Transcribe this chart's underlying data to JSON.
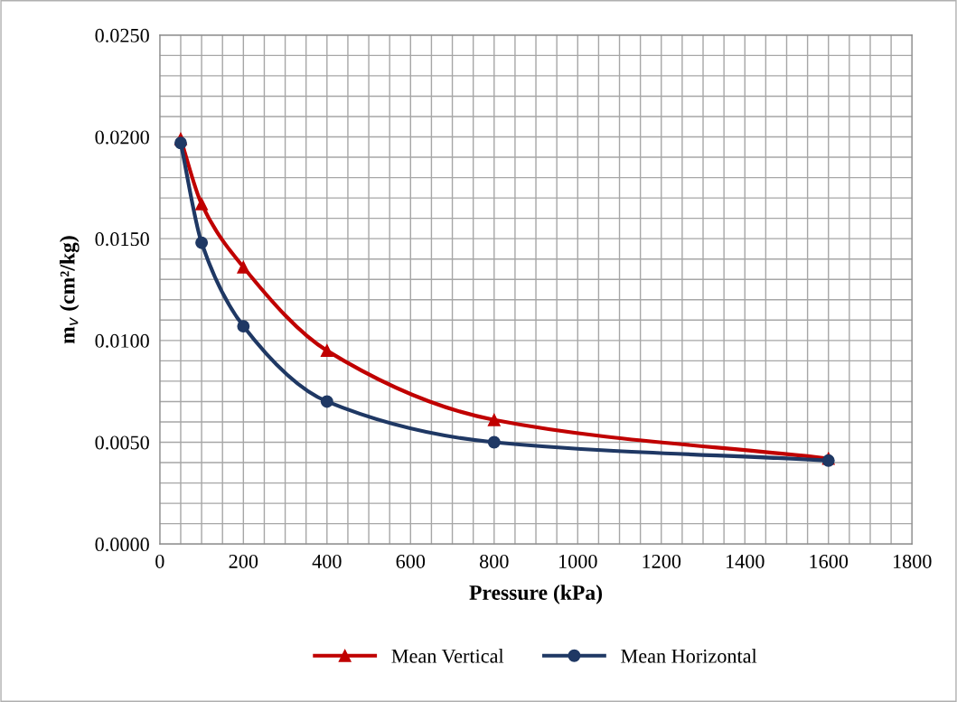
{
  "chart_data": {
    "type": "line",
    "xlabel": "Pressure (kPa)",
    "ylabel": "m$_{v}$ (cm²/kg)",
    "xlim": [
      0,
      1800
    ],
    "ylim": [
      0,
      0.025
    ],
    "xticks": [
      0,
      {
        "value": 50,
        "label": null
      },
      {
        "value": 100,
        "label": null
      },
      {
        "value": 150,
        "label": null
      },
      200,
      {
        "value": 250,
        "label": null
      },
      {
        "value": 300,
        "label": null
      },
      {
        "value": 350,
        "label": null
      },
      400,
      {
        "value": 450,
        "label": null
      },
      {
        "value": 500,
        "label": null
      },
      {
        "value": 550,
        "label": null
      },
      600,
      {
        "value": 650,
        "label": null
      },
      {
        "value": 700,
        "label": null
      },
      {
        "value": 750,
        "label": null
      },
      800,
      {
        "value": 850,
        "label": null
      },
      {
        "value": 900,
        "label": null
      },
      {
        "value": 950,
        "label": null
      },
      1000,
      {
        "value": 1050,
        "label": null
      },
      {
        "value": 1100,
        "label": null
      },
      {
        "value": 1150,
        "label": null
      },
      1200,
      {
        "value": 1250,
        "label": null
      },
      {
        "value": 1300,
        "label": null
      },
      {
        "value": 1350,
        "label": null
      },
      1400,
      {
        "value": 1450,
        "label": null
      },
      {
        "value": 1500,
        "label": null
      },
      {
        "value": 1550,
        "label": null
      },
      1600,
      {
        "value": 1650,
        "label": null
      },
      {
        "value": 1700,
        "label": null
      },
      {
        "value": 1750,
        "label": null
      },
      1800
    ],
    "yticks": [
      {
        "value": 0,
        "label": "0.0000"
      },
      {
        "value": 0.001,
        "label": null
      },
      {
        "value": 0.002,
        "label": null
      },
      {
        "value": 0.003,
        "label": null
      },
      {
        "value": 0.004,
        "label": null
      },
      {
        "value": 0.005,
        "label": "0.0050"
      },
      {
        "value": 0.006,
        "label": null
      },
      {
        "value": 0.007,
        "label": null
      },
      {
        "value": 0.008,
        "label": null
      },
      {
        "value": 0.009,
        "label": null
      },
      {
        "value": 0.01,
        "label": "0.0100"
      },
      {
        "value": 0.011,
        "label": null
      },
      {
        "value": 0.012,
        "label": null
      },
      {
        "value": 0.013,
        "label": null
      },
      {
        "value": 0.014,
        "label": null
      },
      {
        "value": 0.015,
        "label": "0.0150"
      },
      {
        "value": 0.016,
        "label": null
      },
      {
        "value": 0.017,
        "label": null
      },
      {
        "value": 0.018,
        "label": null
      },
      {
        "value": 0.019,
        "label": null
      },
      {
        "value": 0.02,
        "label": "0.0200"
      },
      {
        "value": 0.021,
        "label": null
      },
      {
        "value": 0.022,
        "label": null
      },
      {
        "value": 0.023,
        "label": null
      },
      {
        "value": 0.024,
        "label": null
      },
      {
        "value": 0.025,
        "label": "0.0250"
      }
    ],
    "grid": true,
    "legend": "bottom",
    "line_style": "solid",
    "x": [
      50,
      100,
      200,
      400,
      800,
      1600
    ],
    "series": [
      {
        "name": "Mean Vertical",
        "color": "#c00000",
        "marker": "triangle",
        "values": [
          0.0199,
          0.0167,
          0.0136,
          0.0095,
          0.0061,
          0.0042
        ]
      },
      {
        "name": "Mean Horizontal",
        "color": "#1f3864",
        "marker": "circle",
        "values": [
          0.0197,
          0.0148,
          0.0107,
          0.007,
          0.005,
          0.0041
        ]
      }
    ]
  }
}
